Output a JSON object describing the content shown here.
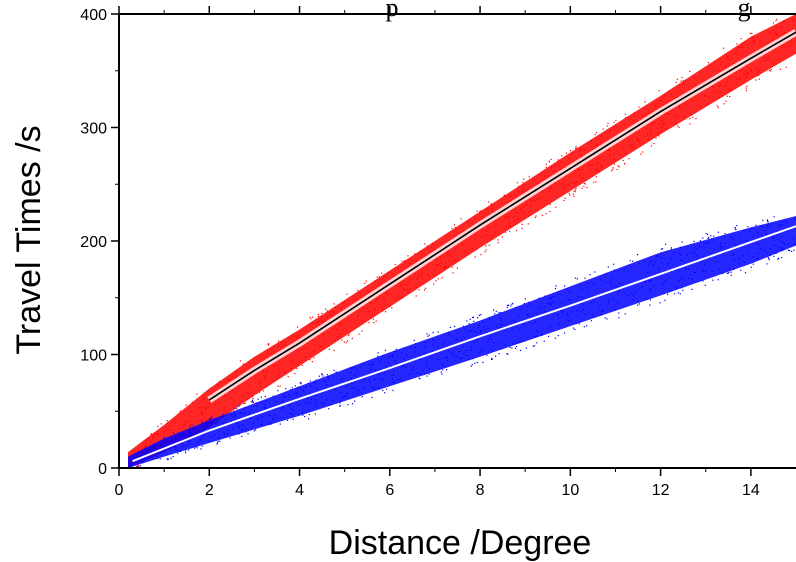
{
  "chart_data": {
    "type": "scatter",
    "title_fragment": "p",
    "title_fragment_right": "g",
    "xlabel": "Distance /Degree",
    "ylabel": "Travel Times /s",
    "xlim": [
      0,
      15
    ],
    "ylim": [
      0,
      400
    ],
    "x_ticks": [
      0,
      2,
      4,
      6,
      8,
      10,
      12,
      14
    ],
    "y_ticks": [
      0,
      100,
      200,
      300,
      400
    ],
    "grid": false,
    "series": [
      {
        "color": "#ff0000",
        "line_color": "#000000",
        "line_x": [
          2,
          3,
          4,
          6,
          8,
          10,
          12,
          14,
          15
        ],
        "line_y": [
          60,
          86,
          110,
          162,
          214,
          264,
          314,
          361,
          384
        ],
        "band_x": [
          0.2,
          1,
          2,
          3,
          4,
          5,
          6,
          8,
          10,
          12,
          14,
          15
        ],
        "band_lower": [
          0,
          14,
          36,
          64,
          90,
          116,
          142,
          194,
          244,
          294,
          342,
          365
        ],
        "band_upper": [
          14,
          38,
          70,
          98,
          122,
          148,
          174,
          226,
          278,
          328,
          380,
          400
        ]
      },
      {
        "color": "#0000ff",
        "line_color": "#ffffff",
        "line_x": [
          0.3,
          2,
          4,
          6,
          8,
          10,
          12,
          14,
          15
        ],
        "line_y": [
          6,
          33,
          61,
          88,
          116,
          143,
          171,
          199,
          213
        ],
        "band_x": [
          0.2,
          1,
          2,
          4,
          6,
          8,
          10,
          12,
          14,
          15
        ],
        "band_lower": [
          0,
          10,
          22,
          46,
          72,
          98,
          125,
          152,
          180,
          196
        ],
        "band_upper": [
          10,
          26,
          42,
          72,
          102,
          130,
          160,
          190,
          212,
          222
        ]
      }
    ]
  }
}
